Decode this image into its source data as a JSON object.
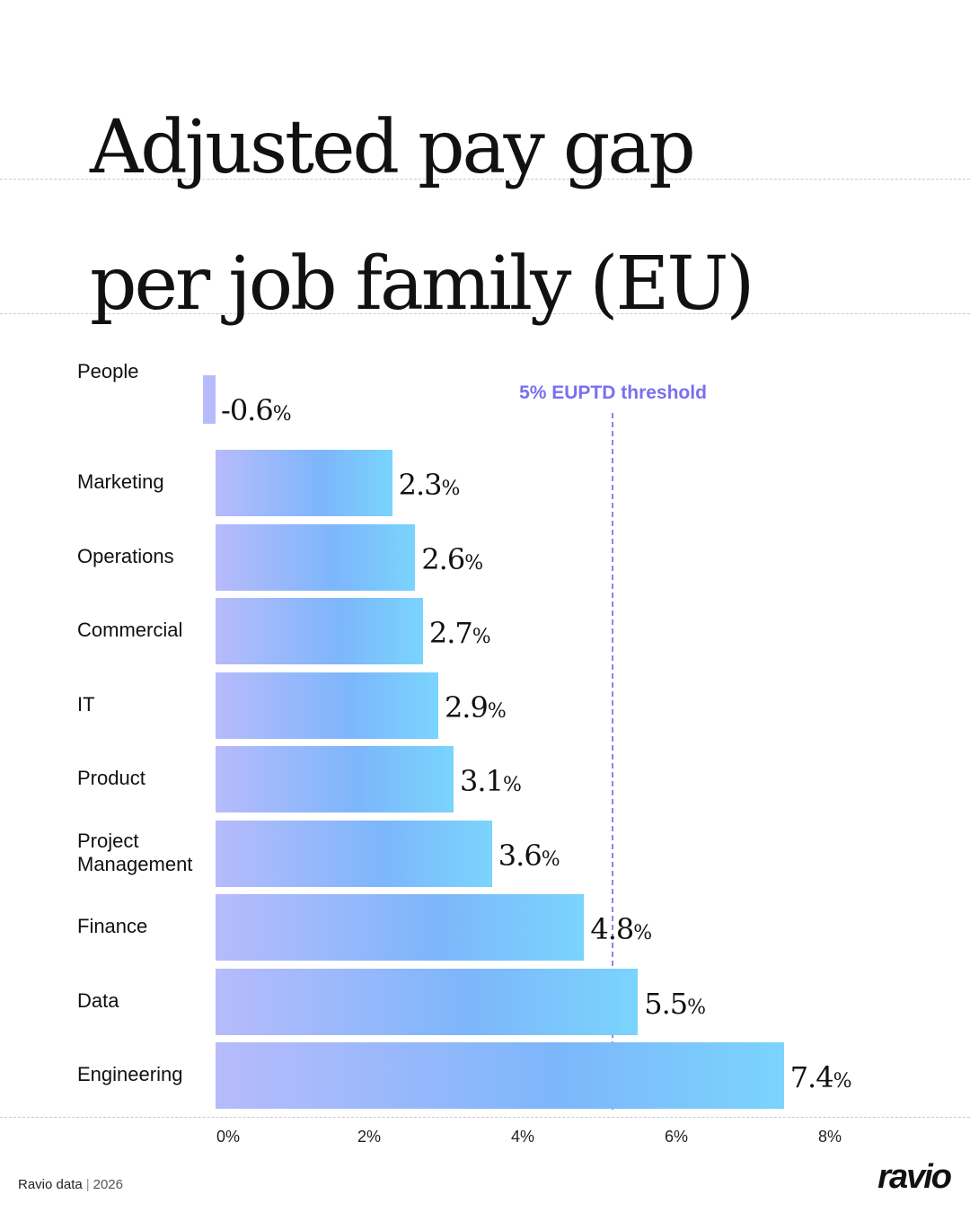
{
  "title": {
    "line1": "Adjusted pay gap",
    "line2": "per job family (EU)"
  },
  "threshold": {
    "label": "5% EUPTD threshold",
    "value": 5,
    "color": "#7a6ff0"
  },
  "chart_data": {
    "type": "bar",
    "orientation": "horizontal",
    "categories": [
      "People",
      "Marketing",
      "Operations",
      "Commercial",
      "IT",
      "Product",
      "Project\nManagement",
      "Finance",
      "Data",
      "Engineering"
    ],
    "values": [
      -0.6,
      2.3,
      2.6,
      2.7,
      2.9,
      3.1,
      3.6,
      4.8,
      5.5,
      7.4
    ],
    "value_labels": [
      "-0.6",
      "2.3",
      "2.6",
      "2.7",
      "2.9",
      "3.1",
      "3.6",
      "4.8",
      "5.5",
      "7.4"
    ],
    "value_suffix": "%",
    "xticks": [
      "0%",
      "2%",
      "4%",
      "6%",
      "8%"
    ],
    "xtick_values": [
      0,
      2,
      4,
      6,
      8
    ],
    "xlim": [
      0,
      8
    ],
    "grid": false,
    "colors": [
      "#b7bbfb",
      "#7db6fb",
      "#7ad4fd"
    ]
  },
  "footer": {
    "source": "Ravio data",
    "year": "2026"
  },
  "logo": "ravio"
}
